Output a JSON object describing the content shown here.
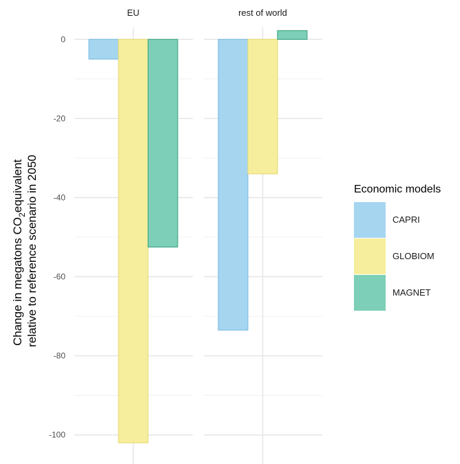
{
  "chart_data": {
    "type": "bar",
    "facets": [
      "EU",
      "rest of world"
    ],
    "series": [
      {
        "name": "CAPRI",
        "values": [
          -5,
          -73.5
        ]
      },
      {
        "name": "GLOBIOM",
        "values": [
          -102,
          -34
        ]
      },
      {
        "name": "MAGNET",
        "values": [
          -52.5,
          2.2
        ]
      }
    ],
    "ylabel_line1_prefix": "Change in megatons CO",
    "ylabel_line1_sub": "2",
    "ylabel_line1_suffix": "equivalent",
    "ylabel_line2": "relative to reference scenario in 2050",
    "ylim": [
      -103,
      3
    ],
    "yticks": [
      0,
      -20,
      -40,
      -60,
      -80,
      -100
    ],
    "legend_title": "Economic models",
    "legend_position": "right",
    "grid": true,
    "colors": {
      "CAPRI": "#a6d5f0",
      "GLOBIOM": "#f6ee9c",
      "MAGNET": "#7dcfb7"
    },
    "borders": {
      "CAPRI": "#72b8e0",
      "GLOBIOM": "#e4d870",
      "MAGNET": "#2e9c7a"
    }
  }
}
